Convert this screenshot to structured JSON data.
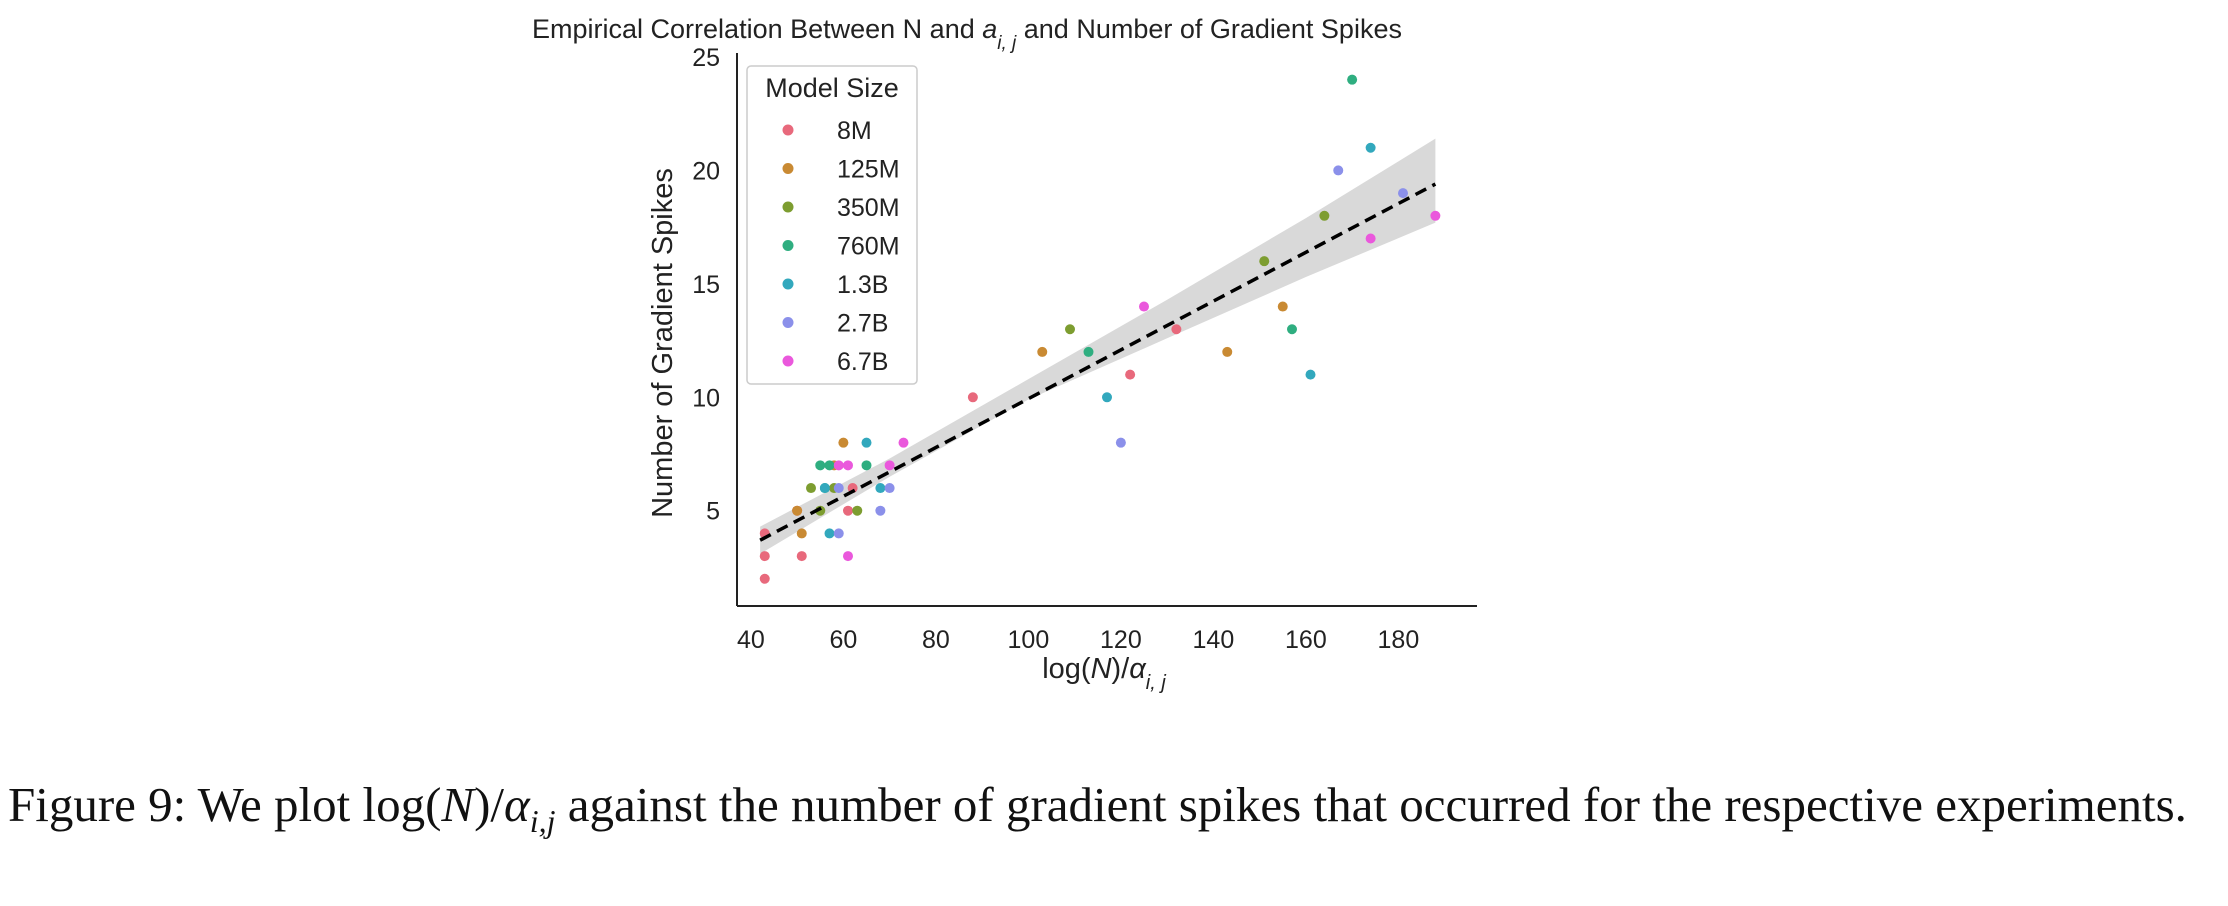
{
  "chart_data": {
    "type": "scatter",
    "title_prefix": "Empirical Correlation Between N and ",
    "title_var": "a",
    "title_sub": "i, j",
    "title_suffix": " and Number of Gradient Spikes",
    "xlabel_prefix": "log(",
    "xlabel_var": "N",
    "xlabel_mid": ")/",
    "xlabel_greek": "α",
    "xlabel_sub": "i, j",
    "ylabel": "Number of Gradient Spikes",
    "xlim": [
      37,
      197
    ],
    "ylim": [
      0.8,
      25
    ],
    "xticks": [
      40,
      60,
      80,
      100,
      120,
      140,
      160,
      180
    ],
    "yticks": [
      5,
      10,
      15,
      20,
      25
    ],
    "grid": false,
    "legend_title": "Model Size",
    "legend_position": "upper-left",
    "series": [
      {
        "name": "8M",
        "color": "#e8697c",
        "points": [
          [
            43,
            4
          ],
          [
            43,
            3
          ],
          [
            43,
            2
          ],
          [
            50,
            5
          ],
          [
            51,
            3
          ],
          [
            61,
            5
          ],
          [
            62,
            6
          ],
          [
            88,
            10
          ],
          [
            122,
            11
          ],
          [
            132,
            13
          ]
        ]
      },
      {
        "name": "125M",
        "color": "#c98a33",
        "points": [
          [
            50,
            5
          ],
          [
            51,
            4
          ],
          [
            58,
            7
          ],
          [
            60,
            8
          ],
          [
            103,
            12
          ],
          [
            143,
            12
          ],
          [
            155,
            14
          ]
        ]
      },
      {
        "name": "350M",
        "color": "#7d9d30",
        "points": [
          [
            53,
            6
          ],
          [
            55,
            5
          ],
          [
            58,
            6
          ],
          [
            63,
            5
          ],
          [
            109,
            13
          ],
          [
            151,
            16
          ],
          [
            164,
            18
          ]
        ]
      },
      {
        "name": "760M",
        "color": "#2fae80",
        "points": [
          [
            55,
            7
          ],
          [
            56,
            6
          ],
          [
            57,
            7
          ],
          [
            65,
            7
          ],
          [
            113,
            12
          ],
          [
            157,
            13
          ],
          [
            170,
            24
          ]
        ]
      },
      {
        "name": "1.3B",
        "color": "#32a8bd",
        "points": [
          [
            56,
            6
          ],
          [
            57,
            4
          ],
          [
            65,
            8
          ],
          [
            68,
            6
          ],
          [
            117,
            10
          ],
          [
            161,
            11
          ],
          [
            174,
            21
          ]
        ]
      },
      {
        "name": "2.7B",
        "color": "#8b90ea",
        "points": [
          [
            59,
            6
          ],
          [
            59,
            4
          ],
          [
            68,
            5
          ],
          [
            70,
            6
          ],
          [
            120,
            8
          ],
          [
            167,
            20
          ],
          [
            181,
            19
          ]
        ]
      },
      {
        "name": "6.7B",
        "color": "#ea58dc",
        "points": [
          [
            59,
            7
          ],
          [
            61,
            7
          ],
          [
            61,
            3
          ],
          [
            70,
            7
          ],
          [
            73,
            8
          ],
          [
            125,
            14
          ],
          [
            174,
            17
          ],
          [
            188,
            18
          ]
        ]
      }
    ],
    "fit_line": {
      "x": [
        42,
        188
      ],
      "y": [
        3.7,
        19.4
      ],
      "style": "dashed",
      "color": "#000000"
    },
    "confidence_band": {
      "x": [
        42,
        70,
        100,
        130,
        160,
        188
      ],
      "lower": [
        3.1,
        6.5,
        9.9,
        12.6,
        15.3,
        17.7
      ],
      "upper": [
        4.3,
        7.3,
        10.8,
        14.3,
        17.9,
        21.4
      ],
      "color": "#d9d9d9"
    }
  },
  "caption": {
    "prefix": "Figure 9: We plot ",
    "math_prefix": "log(",
    "math_var": "N",
    "math_mid": ")/",
    "math_greek": "α",
    "math_sub": "i,j",
    "suffix": " against the number of gradient spikes that occurred for the respective experiments."
  }
}
